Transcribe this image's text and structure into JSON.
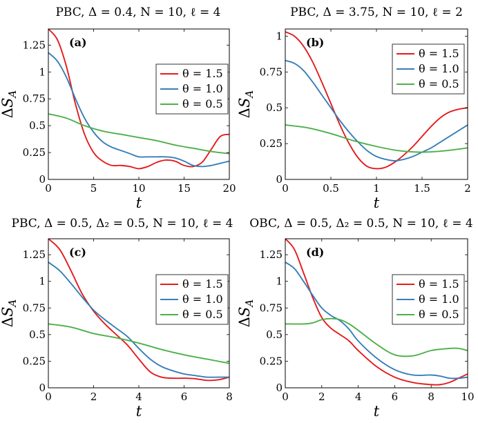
{
  "colors": {
    "red": "#e41a1c",
    "blue": "#377eb8",
    "green": "#4daf4a"
  },
  "chart_data": [
    {
      "type": "line",
      "title": "PBC, Δ = 0.4, N = 10, ℓ = 4",
      "label": "(a)",
      "xlabel": "t",
      "ylabel": "ΔS_A",
      "xlim": [
        0,
        20
      ],
      "ylim": [
        0,
        1.4
      ],
      "xticks": [
        0,
        5,
        10,
        15,
        20
      ],
      "xtick_labels": [
        "0",
        "5",
        "10",
        "15",
        "20"
      ],
      "yticks": [
        0,
        0.25,
        0.5,
        0.75,
        1,
        1.25
      ],
      "ytick_labels": [
        "0",
        "0.25",
        "0.5",
        "0.75",
        "1",
        "1.25"
      ],
      "legend_position": "center-right",
      "series": [
        {
          "name": "θ = 1.5",
          "color": "red",
          "x": [
            0,
            1,
            2,
            3,
            4,
            5,
            6,
            7,
            8,
            9,
            10,
            11,
            12,
            13,
            14,
            15,
            16,
            17,
            18,
            19,
            20
          ],
          "y": [
            1.4,
            1.3,
            1.05,
            0.7,
            0.42,
            0.25,
            0.17,
            0.13,
            0.13,
            0.12,
            0.1,
            0.12,
            0.16,
            0.18,
            0.17,
            0.13,
            0.12,
            0.16,
            0.28,
            0.4,
            0.42
          ]
        },
        {
          "name": "θ = 1.0",
          "color": "blue",
          "x": [
            0,
            1,
            2,
            3,
            4,
            5,
            6,
            7,
            8,
            9,
            10,
            11,
            12,
            13,
            14,
            15,
            16,
            17,
            18,
            19,
            20
          ],
          "y": [
            1.18,
            1.1,
            0.95,
            0.75,
            0.57,
            0.44,
            0.35,
            0.3,
            0.27,
            0.24,
            0.21,
            0.21,
            0.21,
            0.21,
            0.2,
            0.17,
            0.13,
            0.12,
            0.13,
            0.15,
            0.17
          ]
        },
        {
          "name": "θ = 0.5",
          "color": "green",
          "x": [
            0,
            2,
            4,
            6,
            8,
            10,
            12,
            14,
            16,
            18,
            20
          ],
          "y": [
            0.61,
            0.57,
            0.5,
            0.45,
            0.42,
            0.39,
            0.36,
            0.32,
            0.29,
            0.26,
            0.24
          ]
        }
      ]
    },
    {
      "type": "line",
      "title": "PBC, Δ = 3.75, N = 10, ℓ = 2",
      "label": "(b)",
      "xlabel": "t",
      "ylabel": "ΔS_A",
      "xlim": [
        0,
        2
      ],
      "ylim": [
        0,
        1.05
      ],
      "xticks": [
        0,
        0.5,
        1,
        1.5,
        2
      ],
      "xtick_labels": [
        "0",
        "0.5",
        "1",
        "1.5",
        "2"
      ],
      "yticks": [
        0,
        0.25,
        0.5,
        0.75,
        1
      ],
      "ytick_labels": [
        "0",
        "0.25",
        "0.5",
        "0.75",
        "1"
      ],
      "legend_position": "top-right",
      "series": [
        {
          "name": "θ = 1.5",
          "color": "red",
          "x": [
            0,
            0.1,
            0.2,
            0.3,
            0.4,
            0.5,
            0.6,
            0.7,
            0.8,
            0.9,
            1.0,
            1.1,
            1.2,
            1.3,
            1.4,
            1.5,
            1.6,
            1.7,
            1.8,
            1.9,
            2.0
          ],
          "y": [
            1.03,
            1.0,
            0.93,
            0.82,
            0.68,
            0.53,
            0.38,
            0.25,
            0.15,
            0.09,
            0.075,
            0.085,
            0.12,
            0.17,
            0.23,
            0.3,
            0.37,
            0.43,
            0.47,
            0.49,
            0.5
          ]
        },
        {
          "name": "θ = 1.0",
          "color": "blue",
          "x": [
            0,
            0.1,
            0.2,
            0.3,
            0.4,
            0.5,
            0.6,
            0.7,
            0.8,
            0.9,
            1.0,
            1.1,
            1.2,
            1.3,
            1.4,
            1.5,
            1.6,
            1.7,
            1.8,
            1.9,
            2.0
          ],
          "y": [
            0.83,
            0.81,
            0.76,
            0.68,
            0.59,
            0.5,
            0.41,
            0.33,
            0.26,
            0.2,
            0.16,
            0.14,
            0.13,
            0.14,
            0.16,
            0.19,
            0.22,
            0.26,
            0.3,
            0.34,
            0.38
          ]
        },
        {
          "name": "θ = 0.5",
          "color": "green",
          "x": [
            0,
            0.25,
            0.5,
            0.75,
            1.0,
            1.25,
            1.5,
            1.75,
            2.0
          ],
          "y": [
            0.38,
            0.36,
            0.32,
            0.27,
            0.23,
            0.2,
            0.19,
            0.2,
            0.22
          ]
        }
      ]
    },
    {
      "type": "line",
      "title": "PBC, Δ = 0.5, Δ₂ = 0.5, N = 10, ℓ = 4",
      "label": "(c)",
      "xlabel": "t",
      "ylabel": "ΔS_A",
      "xlim": [
        0,
        8
      ],
      "ylim": [
        0,
        1.4
      ],
      "xticks": [
        0,
        2,
        4,
        6,
        8
      ],
      "xtick_labels": [
        "0",
        "2",
        "4",
        "6",
        "8"
      ],
      "yticks": [
        0,
        0.25,
        0.5,
        0.75,
        1,
        1.25
      ],
      "ytick_labels": [
        "0",
        "0.25",
        "0.5",
        "0.75",
        "1",
        "1.25"
      ],
      "legend_position": "center-right",
      "series": [
        {
          "name": "θ = 1.5",
          "color": "red",
          "x": [
            0,
            0.5,
            1,
            1.5,
            2,
            2.5,
            3,
            3.5,
            4,
            4.5,
            5,
            5.5,
            6,
            6.5,
            7,
            7.5,
            8
          ],
          "y": [
            1.4,
            1.3,
            1.1,
            0.88,
            0.72,
            0.6,
            0.5,
            0.4,
            0.27,
            0.15,
            0.1,
            0.09,
            0.09,
            0.085,
            0.07,
            0.075,
            0.1
          ]
        },
        {
          "name": "θ = 1.0",
          "color": "blue",
          "x": [
            0,
            0.5,
            1,
            1.5,
            2,
            2.5,
            3,
            3.5,
            4,
            4.5,
            5,
            5.5,
            6,
            6.5,
            7,
            7.5,
            8
          ],
          "y": [
            1.18,
            1.1,
            0.98,
            0.85,
            0.73,
            0.64,
            0.56,
            0.48,
            0.37,
            0.27,
            0.2,
            0.16,
            0.13,
            0.115,
            0.1,
            0.1,
            0.1
          ]
        },
        {
          "name": "θ = 0.5",
          "color": "green",
          "x": [
            0,
            1,
            2,
            3,
            4,
            5,
            6,
            7,
            8
          ],
          "y": [
            0.6,
            0.57,
            0.51,
            0.47,
            0.42,
            0.36,
            0.31,
            0.27,
            0.23
          ]
        }
      ]
    },
    {
      "type": "line",
      "title": "OBC, Δ = 0.5, Δ₂ = 0.5, N = 10, ℓ = 4",
      "label": "(d)",
      "xlabel": "t",
      "ylabel": "ΔS_A",
      "xlim": [
        0,
        10
      ],
      "ylim": [
        0,
        1.4
      ],
      "xticks": [
        0,
        2,
        4,
        6,
        8,
        10
      ],
      "xtick_labels": [
        "0",
        "2",
        "4",
        "6",
        "8",
        "10"
      ],
      "yticks": [
        0,
        0.25,
        0.5,
        0.75,
        1,
        1.25
      ],
      "ytick_labels": [
        "0",
        "0.25",
        "0.5",
        "0.75",
        "1",
        "1.25"
      ],
      "legend_position": "center-right",
      "series": [
        {
          "name": "θ = 1.5",
          "color": "red",
          "x": [
            0,
            0.5,
            1,
            1.5,
            2,
            2.5,
            3,
            3.5,
            4,
            5,
            6,
            7,
            8,
            8.5,
            9,
            9.5,
            10
          ],
          "y": [
            1.4,
            1.3,
            1.08,
            0.85,
            0.66,
            0.56,
            0.5,
            0.44,
            0.35,
            0.2,
            0.1,
            0.05,
            0.03,
            0.03,
            0.05,
            0.09,
            0.13
          ]
        },
        {
          "name": "θ = 1.0",
          "color": "blue",
          "x": [
            0,
            0.5,
            1,
            1.5,
            2,
            2.5,
            3,
            3.5,
            4,
            5,
            6,
            7,
            8,
            8.5,
            9,
            9.5,
            10
          ],
          "y": [
            1.18,
            1.12,
            1.0,
            0.87,
            0.75,
            0.68,
            0.63,
            0.55,
            0.44,
            0.28,
            0.17,
            0.12,
            0.12,
            0.11,
            0.09,
            0.09,
            0.1
          ]
        },
        {
          "name": "θ = 0.5",
          "color": "green",
          "x": [
            0,
            1,
            1.5,
            2,
            2.5,
            3,
            3.5,
            4,
            5,
            6,
            7,
            8,
            9,
            9.5,
            10
          ],
          "y": [
            0.6,
            0.6,
            0.61,
            0.64,
            0.65,
            0.64,
            0.6,
            0.54,
            0.41,
            0.31,
            0.3,
            0.35,
            0.37,
            0.37,
            0.35
          ]
        }
      ]
    }
  ]
}
